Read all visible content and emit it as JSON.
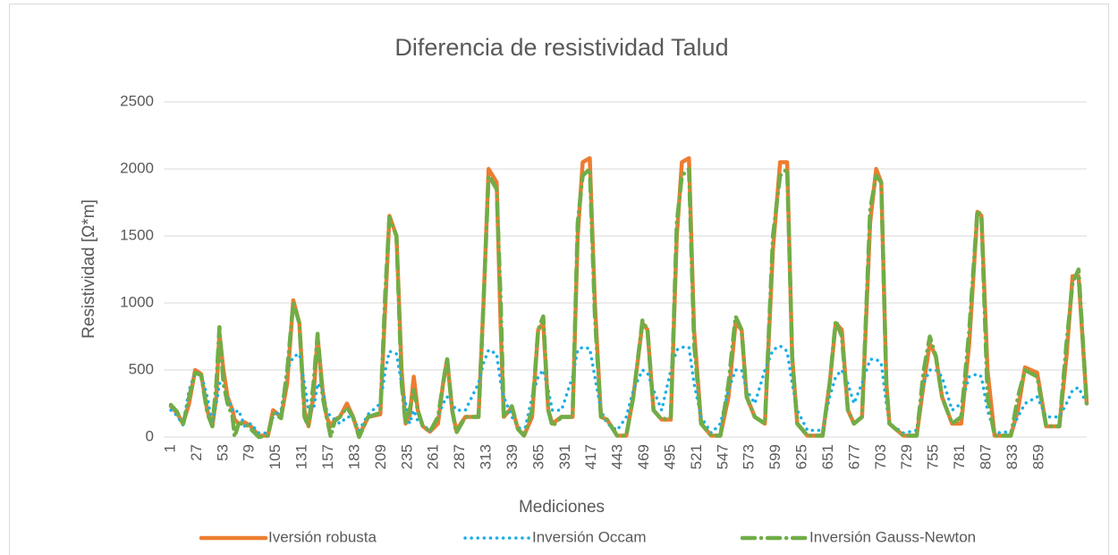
{
  "chart_data": {
    "type": "line",
    "title": "Diferencia de resistividad Talud",
    "x_label": "Mediciones",
    "y_label": "Resistividad [Ω*m]",
    "x": [
      1,
      7,
      13,
      19,
      25,
      31,
      37,
      42,
      46,
      49,
      53,
      57,
      62,
      64,
      68,
      74,
      80,
      88,
      97,
      102,
      110,
      116,
      122,
      128,
      133,
      137,
      142,
      146,
      151,
      155,
      159,
      163,
      168,
      175,
      181,
      187,
      196,
      208,
      213,
      217,
      224,
      229,
      233,
      237,
      241,
      245,
      250,
      257,
      265,
      270,
      274,
      279,
      283,
      292,
      305,
      310,
      315,
      323,
      327,
      330,
      338,
      344,
      350,
      358,
      364,
      369,
      374,
      378,
      387,
      398,
      403,
      408,
      415,
      420,
      426,
      432,
      442,
      451,
      458,
      467,
      472,
      478,
      486,
      495,
      501,
      506,
      513,
      518,
      525,
      535,
      544,
      552,
      559,
      565,
      570,
      578,
      588,
      596,
      603,
      610,
      615,
      620,
      630,
      645,
      652,
      658,
      664,
      670,
      676,
      684,
      692,
      698,
      703,
      708,
      711,
      725,
      738,
      745,
      751,
      757,
      763,
      773,
      782,
      790,
      798,
      802,
      808,
      815,
      831,
      838,
      845,
      857,
      866,
      879,
      886,
      892,
      898,
      906
    ],
    "series": [
      {
        "name": "Iversión robusta",
        "color": "#ed7d31",
        "values": [
          230,
          180,
          100,
          250,
          500,
          470,
          200,
          80,
          300,
          780,
          500,
          300,
          200,
          130,
          100,
          110,
          80,
          10,
          10,
          200,
          150,
          400,
          1020,
          850,
          200,
          80,
          300,
          750,
          350,
          150,
          80,
          130,
          150,
          250,
          150,
          10,
          150,
          170,
          1000,
          1650,
          1500,
          500,
          100,
          150,
          450,
          200,
          80,
          40,
          100,
          400,
          580,
          200,
          50,
          150,
          150,
          1000,
          2000,
          1900,
          800,
          150,
          220,
          60,
          10,
          150,
          800,
          850,
          200,
          100,
          150,
          150,
          1500,
          2050,
          2080,
          1000,
          150,
          130,
          10,
          10,
          300,
          850,
          800,
          200,
          130,
          130,
          1500,
          2050,
          2080,
          800,
          100,
          10,
          10,
          300,
          850,
          800,
          300,
          150,
          100,
          1400,
          2050,
          2050,
          600,
          100,
          10,
          10,
          400,
          850,
          800,
          200,
          100,
          150,
          1600,
          2000,
          1900,
          400,
          100,
          10,
          10,
          400,
          700,
          600,
          300,
          100,
          100,
          700,
          1680,
          1650,
          500,
          10,
          10,
          200,
          520,
          480,
          80,
          80,
          600,
          1200,
          1200,
          250
        ]
      },
      {
        "name": "Inversión Occam",
        "color": "#1aaee8",
        "values": [
          200,
          160,
          90,
          350,
          480,
          470,
          300,
          100,
          250,
          400,
          400,
          300,
          200,
          180,
          200,
          80,
          100,
          30,
          30,
          150,
          200,
          500,
          600,
          620,
          400,
          200,
          200,
          400,
          350,
          200,
          150,
          130,
          100,
          150,
          150,
          50,
          170,
          250,
          500,
          640,
          620,
          400,
          250,
          100,
          200,
          120,
          100,
          40,
          150,
          250,
          300,
          250,
          200,
          200,
          400,
          550,
          650,
          620,
          400,
          300,
          150,
          80,
          30,
          300,
          450,
          500,
          350,
          200,
          200,
          450,
          650,
          670,
          660,
          450,
          200,
          100,
          50,
          150,
          350,
          500,
          480,
          350,
          200,
          500,
          650,
          670,
          670,
          400,
          150,
          30,
          100,
          350,
          500,
          500,
          350,
          250,
          500,
          650,
          680,
          640,
          400,
          200,
          50,
          50,
          300,
          450,
          500,
          400,
          250,
          400,
          580,
          580,
          550,
          250,
          100,
          30,
          50,
          400,
          500,
          500,
          450,
          200,
          250,
          450,
          470,
          450,
          200,
          30,
          40,
          150,
          250,
          300,
          150,
          150,
          250,
          350,
          370,
          250
        ]
      },
      {
        "name": "Inversión Gauss-Newton",
        "color": "#70ad47",
        "values": [
          240,
          190,
          90,
          300,
          480,
          460,
          180,
          80,
          400,
          820,
          400,
          250,
          150,
          0,
          100,
          100,
          60,
          0,
          10,
          180,
          140,
          500,
          1000,
          850,
          150,
          80,
          400,
          770,
          300,
          150,
          0,
          120,
          150,
          220,
          150,
          0,
          150,
          180,
          1100,
          1640,
          1500,
          400,
          100,
          200,
          350,
          200,
          80,
          40,
          150,
          400,
          590,
          200,
          30,
          150,
          150,
          1000,
          1950,
          1850,
          1000,
          150,
          230,
          60,
          10,
          200,
          800,
          900,
          200,
          80,
          150,
          150,
          1600,
          1950,
          2000,
          900,
          150,
          130,
          10,
          10,
          300,
          870,
          800,
          200,
          130,
          150,
          1600,
          1950,
          2000,
          700,
          100,
          10,
          10,
          400,
          900,
          800,
          300,
          150,
          100,
          1500,
          1950,
          2000,
          600,
          100,
          10,
          10,
          400,
          870,
          750,
          200,
          100,
          150,
          1700,
          1950,
          1900,
          400,
          100,
          10,
          10,
          500,
          750,
          600,
          300,
          100,
          150,
          800,
          1690,
          1650,
          300,
          10,
          10,
          300,
          500,
          450,
          80,
          80,
          700,
          1150,
          1250,
          250
        ]
      }
    ],
    "xlim": [
      1,
      906
    ],
    "xticks": [
      1,
      27,
      53,
      79,
      105,
      131,
      157,
      183,
      209,
      235,
      261,
      287,
      313,
      339,
      365,
      391,
      417,
      443,
      469,
      495,
      521,
      547,
      573,
      599,
      625,
      651,
      677,
      703,
      729,
      755,
      781,
      807,
      833,
      859
    ],
    "ylim": [
      0,
      2500
    ],
    "yticks": [
      0,
      500,
      1000,
      1500,
      2000,
      2500
    ],
    "grid": true,
    "legend": "bottom"
  }
}
